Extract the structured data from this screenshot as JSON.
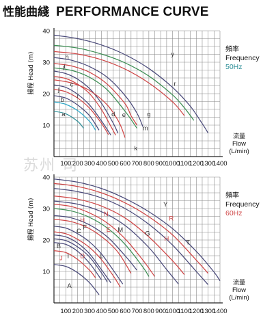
{
  "title_cn": "性能曲綫",
  "title_en": "PERFORMANCE CURVE",
  "watermark": "苏州              司",
  "colors": {
    "navy": "#4a4a7a",
    "teal": "#2f8f98",
    "green": "#3e8f55",
    "red": "#cf4646",
    "cyan": "#2ea6c6",
    "gray": "#666666"
  },
  "chart_data": [
    {
      "type": "line",
      "ylabel": "揚程 Head (m)",
      "xlabel_cn": "流量",
      "xlabel": "Flow",
      "xunit": "(L/min)",
      "legend_cn": "頻率",
      "legend_en": "Frequency",
      "legend_freq": "50Hz",
      "legend_freq_color": "#2f8f98",
      "xlim": [
        0,
        1400
      ],
      "ylim": [
        0,
        40
      ],
      "xticks": [
        "100",
        "200",
        "300",
        "400",
        "500",
        "600",
        "700",
        "800",
        "900",
        "1000",
        "1100",
        "1200",
        "1300",
        "1400"
      ],
      "yticks": [
        "10",
        "20",
        "30",
        "40"
      ],
      "grid": true,
      "series": [
        {
          "name": "y",
          "color": "#4a4a7a",
          "x": [
            0,
            200,
            400,
            600,
            800,
            1000,
            1150,
            1250,
            1300
          ],
          "y": [
            38.6,
            37.5,
            35.5,
            32.4,
            28,
            22,
            16,
            10.5,
            7.5
          ]
        },
        {
          "name": "r",
          "color": "#3e8f55",
          "x": [
            0,
            200,
            400,
            600,
            800,
            1000,
            1100,
            1180
          ],
          "y": [
            35.4,
            34.5,
            32.6,
            29.8,
            25.6,
            19.6,
            15.5,
            11.5
          ]
        },
        {
          "name": "",
          "color": "#cf4646",
          "x": [
            0,
            200,
            400,
            600,
            800,
            1000,
            1100
          ],
          "y": [
            33.4,
            32.6,
            30.8,
            27.8,
            23.4,
            17.4,
            13
          ]
        },
        {
          "name": "g",
          "color": "#4a4a7a",
          "x": [
            0,
            150,
            300,
            450,
            600,
            700,
            750
          ],
          "y": [
            31.5,
            30.6,
            28.6,
            25.2,
            19.4,
            13.8,
            9.5
          ]
        },
        {
          "name": "m",
          "color": "#cf4646",
          "x": [
            0,
            150,
            300,
            450,
            600,
            650,
            700
          ],
          "y": [
            29.6,
            28.8,
            26.8,
            23,
            16.8,
            13,
            10
          ]
        },
        {
          "name": "",
          "color": "#3e8f55",
          "x": [
            0,
            150,
            300,
            450,
            600,
            700
          ],
          "y": [
            28.2,
            27.4,
            25.2,
            21.2,
            14.4,
            9
          ]
        },
        {
          "name": "e",
          "color": "#4a4a7a",
          "x": [
            0,
            100,
            200,
            300,
            400,
            500,
            540
          ],
          "y": [
            27.2,
            26.4,
            24.6,
            21.6,
            17,
            10.6,
            7.4
          ]
        },
        {
          "name": "d",
          "color": "#cf4646",
          "x": [
            0,
            100,
            200,
            300,
            400,
            480,
            520
          ],
          "y": [
            25.5,
            24.8,
            23,
            20,
            15,
            9.6,
            6.8
          ]
        },
        {
          "name": "k",
          "color": "#cf4646",
          "x": [
            0,
            150,
            300,
            450,
            550,
            600
          ],
          "y": [
            24.4,
            23.4,
            21,
            16.4,
            10.8,
            6
          ]
        },
        {
          "name": "c",
          "color": "#4a4a7a",
          "x": [
            0,
            100,
            200,
            300,
            400,
            480
          ],
          "y": [
            22.8,
            22,
            19.8,
            16.4,
            11.4,
            6.8
          ]
        },
        {
          "name": "i",
          "color": "#cf4646",
          "x": [
            0,
            100,
            200,
            300,
            400,
            460
          ],
          "y": [
            21.4,
            20.6,
            18.6,
            15.4,
            10.6,
            7
          ]
        },
        {
          "name": "j",
          "color": "#4a4a7a",
          "x": [
            0,
            100,
            200,
            300,
            380
          ],
          "y": [
            19.4,
            18.6,
            16.4,
            13,
            8.4
          ]
        },
        {
          "name": "b",
          "color": "#2ea6c6",
          "x": [
            0,
            100,
            200,
            300,
            350
          ],
          "y": [
            17.4,
            16.6,
            14.6,
            11.2,
            8.4
          ]
        },
        {
          "name": "a",
          "color": "#2f8f98",
          "x": [
            0,
            100,
            200,
            250
          ],
          "y": [
            14.4,
            13.6,
            11.2,
            9
          ]
        }
      ],
      "extra_labels": [
        {
          "text": "y",
          "x": 1000,
          "y": 32
        },
        {
          "text": "r",
          "x": 1020,
          "y": 22.5
        },
        {
          "text": "g",
          "x": 800,
          "y": 12.8
        },
        {
          "text": "m",
          "x": 770,
          "y": 8.4
        },
        {
          "text": "k",
          "x": 690,
          "y": 2
        },
        {
          "text": "e",
          "x": 590,
          "y": 12.6
        },
        {
          "text": "d",
          "x": 500,
          "y": 12.8
        },
        {
          "text": "c",
          "x": 150,
          "y": 22.3
        },
        {
          "text": "i",
          "x": 200,
          "y": 18.6
        },
        {
          "text": "j",
          "x": 40,
          "y": 20.6
        },
        {
          "text": "b",
          "x": 70,
          "y": 17.4
        },
        {
          "text": "a",
          "x": 80,
          "y": 12.8
        },
        {
          "text": "l",
          "x": 80,
          "y": 27.5
        },
        {
          "text": "h",
          "x": 110,
          "y": 31
        },
        {
          "text": "i",
          "x": 90,
          "y": 28
        }
      ]
    },
    {
      "type": "line",
      "ylabel": "揚程 Head (m)",
      "xlabel_cn": "流量",
      "xlabel": "Flow",
      "xunit": "(L/min)",
      "legend_cn": "頻率",
      "legend_en": "Frequency",
      "legend_freq": "60Hz",
      "legend_freq_color": "#cf4646",
      "xlim": [
        0,
        1400
      ],
      "ylim": [
        0,
        40
      ],
      "xticks": [
        "100",
        "200",
        "300",
        "400",
        "500",
        "600",
        "700",
        "800",
        "900",
        "1000",
        "1100",
        "1200",
        "1300",
        "1400"
      ],
      "yticks": [
        "10",
        "20",
        "30",
        "40"
      ],
      "grid": true,
      "series": [
        {
          "name": "Y",
          "color": "#4a4a7a",
          "x": [
            0,
            200,
            400,
            600,
            800,
            1000,
            1200,
            1350,
            1400
          ],
          "y": [
            39.4,
            38.4,
            36.4,
            33.2,
            29,
            23.6,
            16.4,
            9.8,
            7
          ]
        },
        {
          "name": "R",
          "color": "#cf4646",
          "x": [
            0,
            200,
            400,
            600,
            800,
            1000,
            1200,
            1300
          ],
          "y": [
            38,
            37,
            35,
            31.8,
            27.4,
            21.6,
            13.6,
            9.4
          ]
        },
        {
          "name": "T",
          "color": "#4a4a7a",
          "x": [
            0,
            200,
            400,
            600,
            800,
            1000,
            1200,
            1300
          ],
          "y": [
            36.4,
            35.4,
            33.4,
            30,
            25,
            18.4,
            10,
            5.8
          ]
        },
        {
          "name": "H",
          "color": "#cf4646",
          "x": [
            0,
            200,
            400,
            600,
            800,
            1000,
            1100
          ],
          "y": [
            34,
            33,
            30.8,
            27,
            21,
            13.4,
            9
          ]
        },
        {
          "name": "G",
          "color": "#4a4a7a",
          "x": [
            0,
            200,
            400,
            600,
            800,
            950,
            1050
          ],
          "y": [
            32.4,
            31.4,
            29,
            24.6,
            17.6,
            10.6,
            6
          ]
        },
        {
          "name": "N",
          "color": "#cf4646",
          "x": [
            0,
            150,
            300,
            450,
            600,
            750,
            850
          ],
          "y": [
            31.4,
            30.6,
            28.6,
            25.4,
            20.4,
            13.6,
            8.4
          ]
        },
        {
          "name": "",
          "color": "#3e8f55",
          "x": [
            0,
            150,
            300,
            450,
            600,
            750,
            800
          ],
          "y": [
            30,
            29.2,
            27.2,
            23.8,
            18.6,
            11.4,
            8.4
          ]
        },
        {
          "name": "M",
          "color": "#4a4a7a",
          "x": [
            0,
            150,
            300,
            450,
            600,
            700
          ],
          "y": [
            27.8,
            27,
            24.8,
            21,
            15,
            10.4
          ]
        },
        {
          "name": "E",
          "color": "#cf4646",
          "x": [
            0,
            150,
            300,
            450,
            550,
            650
          ],
          "y": [
            26.6,
            25.8,
            23.6,
            19.6,
            15.6,
            9.4
          ]
        },
        {
          "name": "F",
          "color": "#4a4a7a",
          "x": [
            0,
            100,
            200,
            300,
            400,
            500,
            580
          ],
          "y": [
            24.4,
            23.8,
            22,
            19.4,
            15.6,
            10.4,
            6
          ]
        },
        {
          "name": "D",
          "color": "#cf4646",
          "x": [
            0,
            100,
            200,
            300,
            400,
            500,
            560
          ],
          "y": [
            22.6,
            22,
            20.2,
            17.6,
            13.8,
            8.6,
            5
          ]
        },
        {
          "name": "L",
          "color": "#4a4a7a",
          "x": [
            0,
            100,
            200,
            300,
            400,
            480
          ],
          "y": [
            21.6,
            21,
            19,
            15.6,
            10.6,
            6.4
          ]
        },
        {
          "name": "C",
          "color": "#4a4a7a",
          "x": [
            0,
            100,
            200,
            300,
            400,
            450
          ],
          "y": [
            20.4,
            19.8,
            17.8,
            14.6,
            9.6,
            6.6
          ]
        },
        {
          "name": "B",
          "color": "#4a4a7a",
          "x": [
            0,
            100,
            200,
            300,
            400
          ],
          "y": [
            19.2,
            18.6,
            16.4,
            12.6,
            7.4
          ]
        },
        {
          "name": "J",
          "color": "#cf4646",
          "x": [
            0,
            100,
            200,
            300,
            350
          ],
          "y": [
            16.6,
            16,
            13.8,
            10.4,
            8
          ]
        },
        {
          "name": "A",
          "color": "#4a4a7a",
          "x": [
            0,
            100,
            200,
            300,
            380
          ],
          "y": [
            12.2,
            11.6,
            9.6,
            6.4,
            2.6
          ]
        }
      ],
      "extra_labels": [
        {
          "text": "Y",
          "x": 940,
          "y": 30.6
        },
        {
          "text": "R",
          "x": 990,
          "y": 26.2
        },
        {
          "text": "T",
          "x": 1130,
          "y": 18.6
        },
        {
          "text": "H",
          "x": 950,
          "y": 19.8
        },
        {
          "text": "G",
          "x": 790,
          "y": 21.4
        },
        {
          "text": "N",
          "x": 440,
          "y": 27.6
        },
        {
          "text": "H",
          "x": 240,
          "y": 25.6
        },
        {
          "text": "M",
          "x": 560,
          "y": 22.6
        },
        {
          "text": "E",
          "x": 460,
          "y": 22.6
        },
        {
          "text": "F",
          "x": 260,
          "y": 23.4
        },
        {
          "text": "D",
          "x": 240,
          "y": 14.2
        },
        {
          "text": "L",
          "x": 400,
          "y": 14.2
        },
        {
          "text": "C",
          "x": 210,
          "y": 22.2
        },
        {
          "text": "B",
          "x": 40,
          "y": 17.4
        },
        {
          "text": "J",
          "x": 60,
          "y": 13.6
        },
        {
          "text": "I",
          "x": 120,
          "y": 14.2
        },
        {
          "text": "A",
          "x": 130,
          "y": 4.8
        }
      ]
    }
  ]
}
